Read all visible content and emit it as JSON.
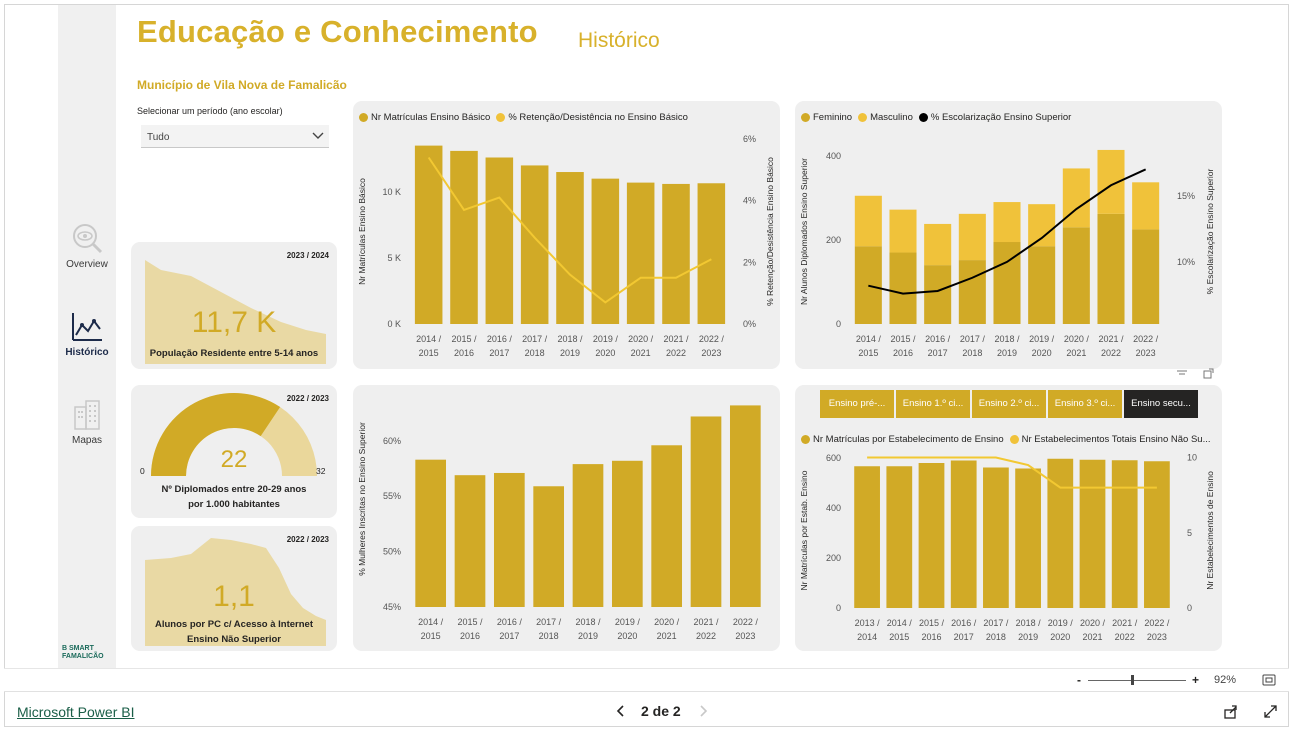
{
  "header": {
    "title": "Educação e Conhecimento",
    "subtitle": "Histórico",
    "municipality": "Município de Vila Nova de Famalicão"
  },
  "slicer": {
    "label": "Selecionar um período (ano escolar)",
    "value": "Tudo"
  },
  "nav": {
    "items": [
      {
        "label": "Overview",
        "icon": "magnifier-eye-icon",
        "active": false
      },
      {
        "label": "Histórico",
        "icon": "line-chart-icon",
        "active": true
      },
      {
        "label": "Mapas",
        "icon": "buildings-icon",
        "active": false
      }
    ],
    "logo_text": "B SMART FAMALICÃO"
  },
  "kpis": {
    "population": {
      "period": "2023 / 2024",
      "value": "11,7 K",
      "label": "População Residente entre 5-14 anos"
    },
    "graduates": {
      "period": "2022 / 2023",
      "value": "22",
      "min": "0",
      "max": "32",
      "gauge_value": 22,
      "gauge_max": 32,
      "label_line1": "Nº Diplomados entre 20-29 anos",
      "label_line2": "por 1.000 habitantes"
    },
    "pcs": {
      "period": "2022 / 2023",
      "value": "1,1",
      "label_line1": "Alunos por PC c/ Acesso à Internet",
      "label_line2": "Ensino Não Superior"
    }
  },
  "chart_data": [
    {
      "type": "bar",
      "id": "basic-enrollment",
      "legend": [
        "Nr Matrículas Ensino Básico",
        "% Retenção/Desistência no Ensino Básico"
      ],
      "categories": [
        [
          "2014 /",
          "2015"
        ],
        [
          "2015 /",
          "2016"
        ],
        [
          "2016 /",
          "2017"
        ],
        [
          "2017 /",
          "2018"
        ],
        [
          "2018 /",
          "2019"
        ],
        [
          "2019 /",
          "2020"
        ],
        [
          "2020 /",
          "2021"
        ],
        [
          "2021 /",
          "2022"
        ],
        [
          "2022 /",
          "2023"
        ]
      ],
      "series": [
        {
          "name": "Nr Matrículas Ensino Básico",
          "type": "bar",
          "axis": "left",
          "values": [
            13500,
            13100,
            12600,
            12000,
            11500,
            11000,
            10700,
            10600,
            10650
          ]
        },
        {
          "name": "% Retenção/Desistência no Ensino Básico",
          "type": "line",
          "axis": "right",
          "values": [
            5.4,
            3.7,
            4.1,
            2.8,
            1.6,
            0.7,
            1.5,
            1.5,
            2.1
          ]
        }
      ],
      "ylabel": "Nr Matrículas Ensino Básico",
      "y2label": "% Retenção/Desistência Ensino Básico",
      "ylim": [
        0,
        14000
      ],
      "yticks": [
        "0 K",
        "5 K",
        "10 K"
      ],
      "ytick_values": [
        0,
        5000,
        10000
      ],
      "y2lim": [
        0,
        6
      ],
      "y2ticks": [
        "0%",
        "2%",
        "4%",
        "6%"
      ],
      "y2tick_values": [
        0,
        2,
        4,
        6
      ]
    },
    {
      "type": "bar",
      "id": "higher-education-graduates",
      "legend": [
        "Feminino",
        "Masculino",
        "% Escolarização Ensino Superior"
      ],
      "categories": [
        [
          "2014 /",
          "2015"
        ],
        [
          "2015 /",
          "2016"
        ],
        [
          "2016 /",
          "2017"
        ],
        [
          "2017 /",
          "2018"
        ],
        [
          "2018 /",
          "2019"
        ],
        [
          "2019 /",
          "2020"
        ],
        [
          "2020 /",
          "2021"
        ],
        [
          "2021 /",
          "2022"
        ],
        [
          "2022 /",
          "2023"
        ]
      ],
      "series": [
        {
          "name": "Feminino",
          "type": "stacked-bar",
          "axis": "left",
          "values": [
            185,
            170,
            140,
            152,
            195,
            185,
            230,
            262,
            225
          ]
        },
        {
          "name": "Masculino",
          "type": "stacked-bar",
          "axis": "left",
          "values": [
            120,
            102,
            98,
            110,
            95,
            100,
            140,
            152,
            112
          ]
        },
        {
          "name": "% Escolarização Ensino Superior",
          "type": "line",
          "axis": "right",
          "values": [
            8.2,
            7.6,
            7.8,
            8.8,
            10.0,
            11.8,
            14.0,
            15.8,
            17.0
          ]
        }
      ],
      "ylabel": "Nr Alunos Diplomados Ensino Superior",
      "y2label": "% Escolarização Ensino Superior",
      "ylim": [
        0,
        440
      ],
      "yticks": [
        "0",
        "200",
        "400"
      ],
      "ytick_values": [
        0,
        200,
        400
      ],
      "y2lim": [
        5.3,
        19.3
      ],
      "y2ticks": [
        "10%",
        "15%"
      ],
      "y2tick_values": [
        10,
        15
      ]
    },
    {
      "type": "bar",
      "id": "women-higher-education",
      "categories": [
        [
          "2014 /",
          "2015"
        ],
        [
          "2015 /",
          "2016"
        ],
        [
          "2016 /",
          "2017"
        ],
        [
          "2017 /",
          "2018"
        ],
        [
          "2018 /",
          "2019"
        ],
        [
          "2019 /",
          "2020"
        ],
        [
          "2020 /",
          "2021"
        ],
        [
          "2021 /",
          "2022"
        ],
        [
          "2022 /",
          "2023"
        ]
      ],
      "series": [
        {
          "name": "% Mulheres Inscritas no Ensino Superior",
          "type": "bar",
          "values": [
            58.3,
            56.9,
            57.1,
            55.9,
            57.9,
            58.2,
            59.6,
            62.2,
            63.2
          ]
        }
      ],
      "ylabel": "% Mulheres Inscritas no Ensino Superior",
      "ylim": [
        45,
        64.5
      ],
      "yticks": [
        "45%",
        "50%",
        "55%",
        "60%"
      ],
      "ytick_values": [
        45,
        50,
        55,
        60
      ]
    },
    {
      "type": "bar",
      "id": "establishments",
      "legend": [
        "Nr Matrículas por Estabelecimento de Ensino",
        "Nr Estabelecimentos Totais Ensino Não Su..."
      ],
      "categories": [
        [
          "2013 /",
          "2014"
        ],
        [
          "2014 /",
          "2015"
        ],
        [
          "2015 /",
          "2016"
        ],
        [
          "2016 /",
          "2017"
        ],
        [
          "2017 /",
          "2018"
        ],
        [
          "2018 /",
          "2019"
        ],
        [
          "2019 /",
          "2020"
        ],
        [
          "2020 /",
          "2021"
        ],
        [
          "2021 /",
          "2022"
        ],
        [
          "2022 /",
          "2023"
        ]
      ],
      "series": [
        {
          "name": "Nr Matrículas por Estabelecimento de Ensino",
          "type": "bar",
          "axis": "left",
          "values": [
            567,
            567,
            580,
            590,
            562,
            558,
            597,
            593,
            591,
            587
          ]
        },
        {
          "name": "Nr Estabelecimentos Totais Ensino Não Su...",
          "type": "line",
          "axis": "right",
          "values": [
            10,
            10,
            10,
            10,
            10,
            9.5,
            8,
            8,
            8,
            8
          ]
        }
      ],
      "ylabel": "Nr Matrículas por Estab. Ensino",
      "y2label": "Nr Estabelecimentos de Ensino",
      "ylim": [
        0,
        620
      ],
      "yticks": [
        "0",
        "200",
        "400",
        "600"
      ],
      "ytick_values": [
        0,
        200,
        400,
        600
      ],
      "y2lim": [
        0,
        10.3
      ],
      "y2ticks": [
        "0",
        "5",
        "10"
      ],
      "y2tick_values": [
        0,
        5,
        10
      ]
    }
  ],
  "tabs": [
    {
      "label": "Ensino pré-...",
      "selected": false
    },
    {
      "label": "Ensino 1.º ci...",
      "selected": false
    },
    {
      "label": "Ensino 2.º ci...",
      "selected": false
    },
    {
      "label": "Ensino 3.º ci...",
      "selected": false
    },
    {
      "label": "Ensino secu...",
      "selected": true
    }
  ],
  "footer": {
    "link": "Microsoft Power BI",
    "pager": "2 de 2",
    "zoom": "92%",
    "zoom_minus": "-",
    "zoom_plus": "+"
  },
  "colors": {
    "gold": "#d1aa26",
    "gold_light": "#f0c23a",
    "title_gold": "#d8b12b",
    "line_gold": "#f2c832",
    "black": "#000000",
    "card_bg": "#efefef"
  }
}
